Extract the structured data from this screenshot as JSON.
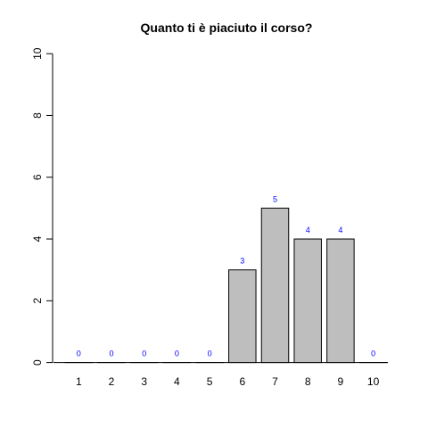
{
  "chart_data": {
    "type": "bar",
    "title": "Quanto ti è piaciuto il corso?",
    "xlabel": "",
    "ylabel": "",
    "categories": [
      "1",
      "2",
      "3",
      "4",
      "5",
      "6",
      "7",
      "8",
      "9",
      "10"
    ],
    "values": [
      0,
      0,
      0,
      0,
      0,
      3,
      5,
      4,
      4,
      0
    ],
    "data_labels": [
      "0",
      "0",
      "0",
      "0",
      "0",
      "3",
      "5",
      "4",
      "4",
      "0"
    ],
    "ylim": [
      0,
      10
    ],
    "yticks": [
      "0",
      "2",
      "4",
      "6",
      "8",
      "10"
    ],
    "grid": false,
    "bar_color": "#bebebe",
    "label_color": "#0000ff"
  }
}
